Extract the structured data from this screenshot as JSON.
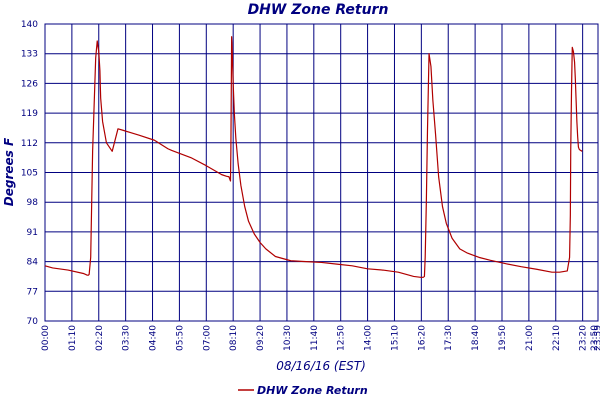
{
  "chart_data": {
    "type": "line",
    "title": "DHW Zone Return",
    "xlabel": "08/16/16 (EST)",
    "ylabel": "Degrees F",
    "ylim": [
      70,
      140
    ],
    "y_ticks": [
      "70",
      "77",
      "84",
      "91",
      "98",
      "105",
      "112",
      "119",
      "126",
      "133",
      "140"
    ],
    "x_tick_labels": [
      "00:00",
      "01:10",
      "02:20",
      "03:30",
      "04:40",
      "05:50",
      "07:00",
      "08:10",
      "09:20",
      "10:30",
      "11:40",
      "12:50",
      "14:00",
      "15:10",
      "16:20",
      "17:30",
      "18:40",
      "19:50",
      "21:00",
      "22:10",
      "23:20"
    ],
    "x_end_labels": [
      "23:50",
      "23:59"
    ],
    "grid": true,
    "legend": "bottom",
    "colors": {
      "series": "#b00000",
      "grid": "#000080",
      "text": "#000080"
    },
    "series": [
      {
        "name": "DHW Zone Return",
        "x": [
          0,
          20,
          60,
          100,
          110,
          113,
          115,
          119,
          124,
          132,
          136,
          140,
          143,
          144,
          145,
          150,
          160,
          175,
          190,
          205,
          230,
          245,
          285,
          320,
          330,
          380,
          420,
          460,
          473,
          479,
          483,
          484,
          486,
          487,
          488,
          490,
          493,
          497,
          503,
          510,
          520,
          530,
          545,
          560,
          575,
          600,
          640,
          680,
          720,
          760,
          800,
          840,
          880,
          920,
          940,
          960,
          978,
          985,
          988,
          990,
          993,
          996,
          1000,
          1005,
          1010,
          1017,
          1025,
          1035,
          1045,
          1060,
          1080,
          1100,
          1130,
          1160,
          1200,
          1240,
          1280,
          1320,
          1340,
          1360,
          1366,
          1368,
          1369,
          1371,
          1373,
          1376,
          1379,
          1381,
          1383,
          1385,
          1387,
          1389,
          1391,
          1393,
          1395,
          1399
        ],
        "values": [
          83.0,
          82.5,
          82.0,
          81.2,
          80.8,
          80.8,
          81.0,
          85.0,
          110.0,
          132.0,
          136.0,
          133.5,
          129.0,
          125.5,
          122.5,
          117.0,
          112.0,
          110.0,
          115.3,
          114.9,
          114.2,
          113.8,
          112.6,
          110.6,
          110.2,
          108.5,
          106.6,
          104.5,
          104.1,
          104.0,
          103.0,
          110.0,
          137.0,
          135.0,
          132.0,
          126.0,
          119.0,
          113.0,
          107.0,
          102.0,
          97.0,
          93.5,
          90.5,
          88.5,
          87.0,
          85.2,
          84.2,
          84.0,
          83.8,
          83.4,
          83.0,
          82.3,
          82.0,
          81.5,
          81.0,
          80.5,
          80.3,
          80.3,
          80.5,
          85.0,
          98.0,
          115.0,
          133.0,
          130.0,
          122.0,
          114.0,
          104.0,
          97.0,
          93.0,
          89.5,
          87.0,
          86.0,
          85.0,
          84.3,
          83.5,
          82.8,
          82.2,
          81.5,
          81.5,
          81.8,
          85.0,
          95.0,
          110.0,
          124.0,
          134.5,
          133.5,
          131.0,
          127.0,
          122.0,
          117.0,
          113.5,
          111.0,
          110.5,
          110.3,
          110.2,
          110.0
        ]
      }
    ]
  }
}
